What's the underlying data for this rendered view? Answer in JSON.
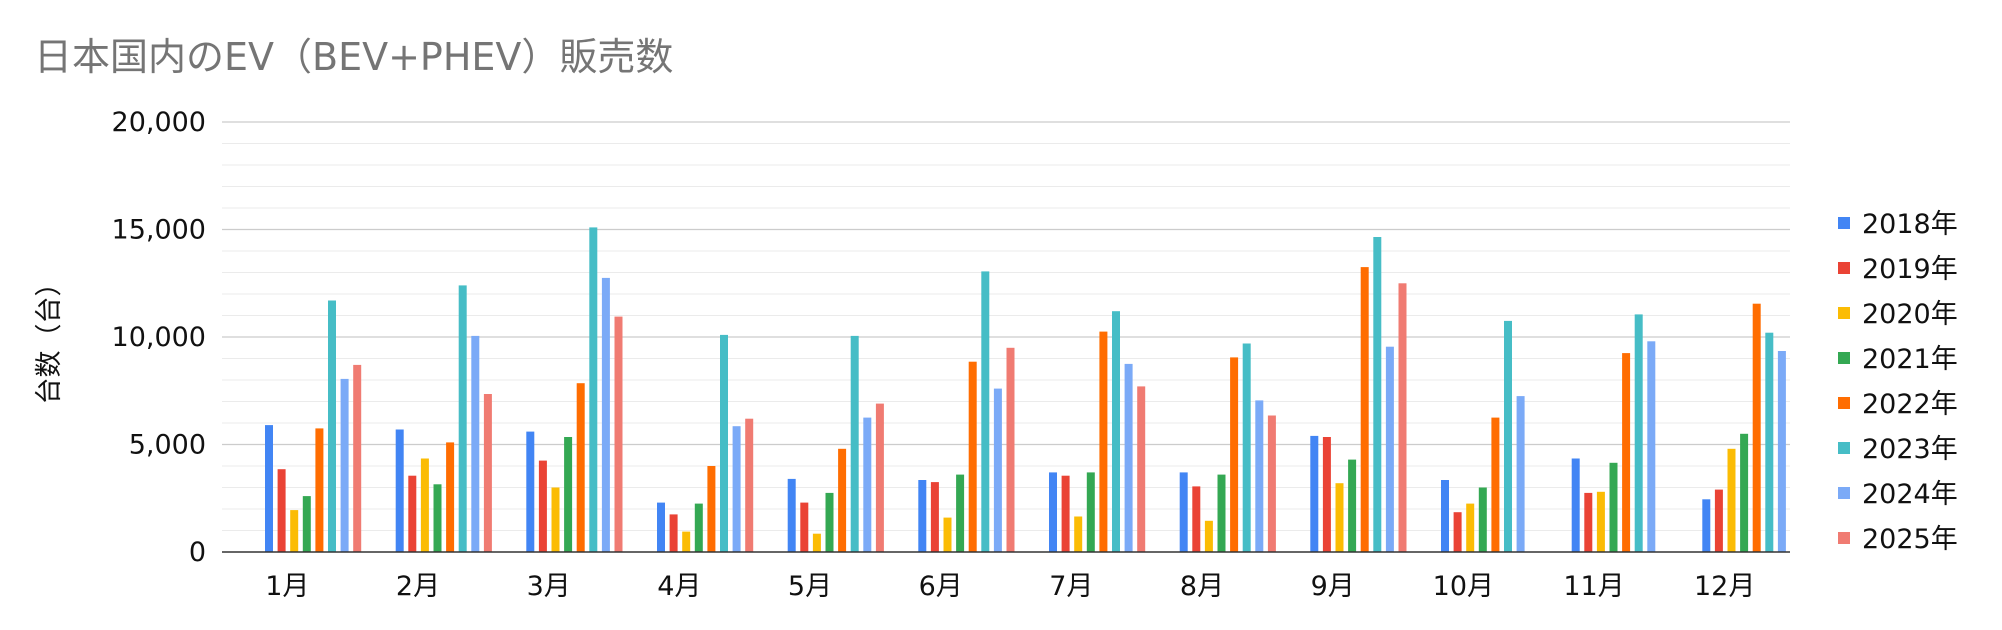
{
  "chart_data": {
    "type": "bar",
    "title": "日本国内のEV（BEV+PHEV）販売数",
    "xlabel": "",
    "ylabel": "台数（台）",
    "ylim": [
      0,
      20000
    ],
    "yticks": [
      "0",
      "5,000",
      "10,000",
      "15,000",
      "20,000"
    ],
    "categories": [
      "1月",
      "2月",
      "3月",
      "4月",
      "5月",
      "6月",
      "7月",
      "8月",
      "9月",
      "10月",
      "11月",
      "12月"
    ],
    "grid": true,
    "legend_position": "right",
    "series": [
      {
        "name": "2018年",
        "color": "#4285F4",
        "values": [
          5900,
          5700,
          5600,
          2300,
          3400,
          3350,
          3700,
          3700,
          5400,
          3350,
          4350,
          2450
        ]
      },
      {
        "name": "2019年",
        "color": "#EA4335",
        "values": [
          3850,
          3550,
          4250,
          1750,
          2300,
          3250,
          3550,
          3050,
          5350,
          1850,
          2750,
          2900
        ]
      },
      {
        "name": "2020年",
        "color": "#FBBC04",
        "values": [
          1950,
          4350,
          3000,
          950,
          850,
          1600,
          1650,
          1450,
          3200,
          2250,
          2800,
          4800
        ]
      },
      {
        "name": "2021年",
        "color": "#34A853",
        "values": [
          2600,
          3150,
          5350,
          2250,
          2750,
          3600,
          3700,
          3600,
          4300,
          3000,
          4150,
          5500
        ]
      },
      {
        "name": "2022年",
        "color": "#FF6D01",
        "values": [
          5750,
          5100,
          7850,
          4000,
          4800,
          8850,
          10250,
          9050,
          13250,
          6250,
          9250,
          11550
        ]
      },
      {
        "name": "2023年",
        "color": "#46BDC6",
        "values": [
          11700,
          12400,
          15100,
          10100,
          10050,
          13050,
          11200,
          9700,
          14650,
          10750,
          11050,
          10200
        ]
      },
      {
        "name": "2024年",
        "color": "#7BAAF7",
        "values": [
          8050,
          10050,
          12750,
          5850,
          6250,
          7600,
          8750,
          7050,
          9550,
          7250,
          9800,
          9350
        ]
      },
      {
        "name": "2025年",
        "color": "#F07B72",
        "values": [
          8700,
          7350,
          10950,
          6200,
          6900,
          9500,
          7700,
          6350,
          12500,
          null,
          null,
          null
        ]
      }
    ]
  }
}
